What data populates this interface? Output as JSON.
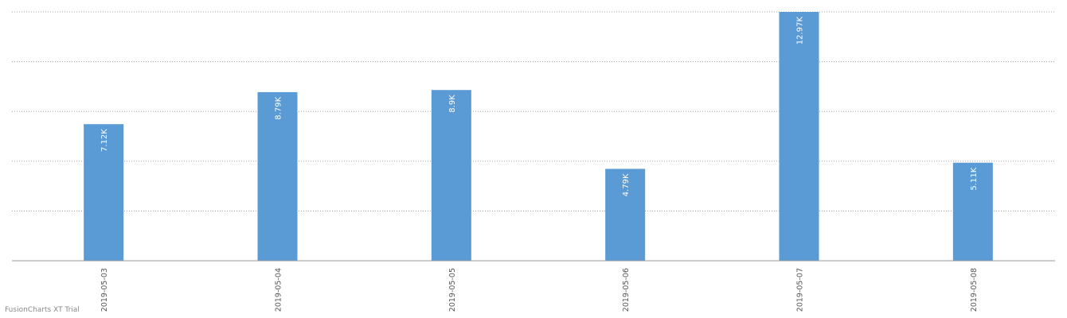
{
  "watermark": "FusionCharts XT Trial",
  "chart_data": {
    "type": "bar",
    "categories": [
      "2019-05-03",
      "2019-05-04",
      "2019-05-05",
      "2019-05-06",
      "2019-05-07",
      "2019-05-08"
    ],
    "values": [
      7120,
      8790,
      8900,
      4790,
      12970,
      5110
    ],
    "data_labels": [
      "7.12K",
      "8.79K",
      "8.9K",
      "4.79K",
      "12.97K",
      "5.11K"
    ],
    "ylim": [
      0,
      12970
    ],
    "grid": true,
    "gridlines": 5,
    "y_tick_labels_shown": false,
    "x_tick_label_rotation": "vertical",
    "bar_color": "#5b9bd5",
    "data_label_color": "#ffffff",
    "grid_color": "#a0a0a0",
    "axis_color": "#9a9a9a"
  }
}
